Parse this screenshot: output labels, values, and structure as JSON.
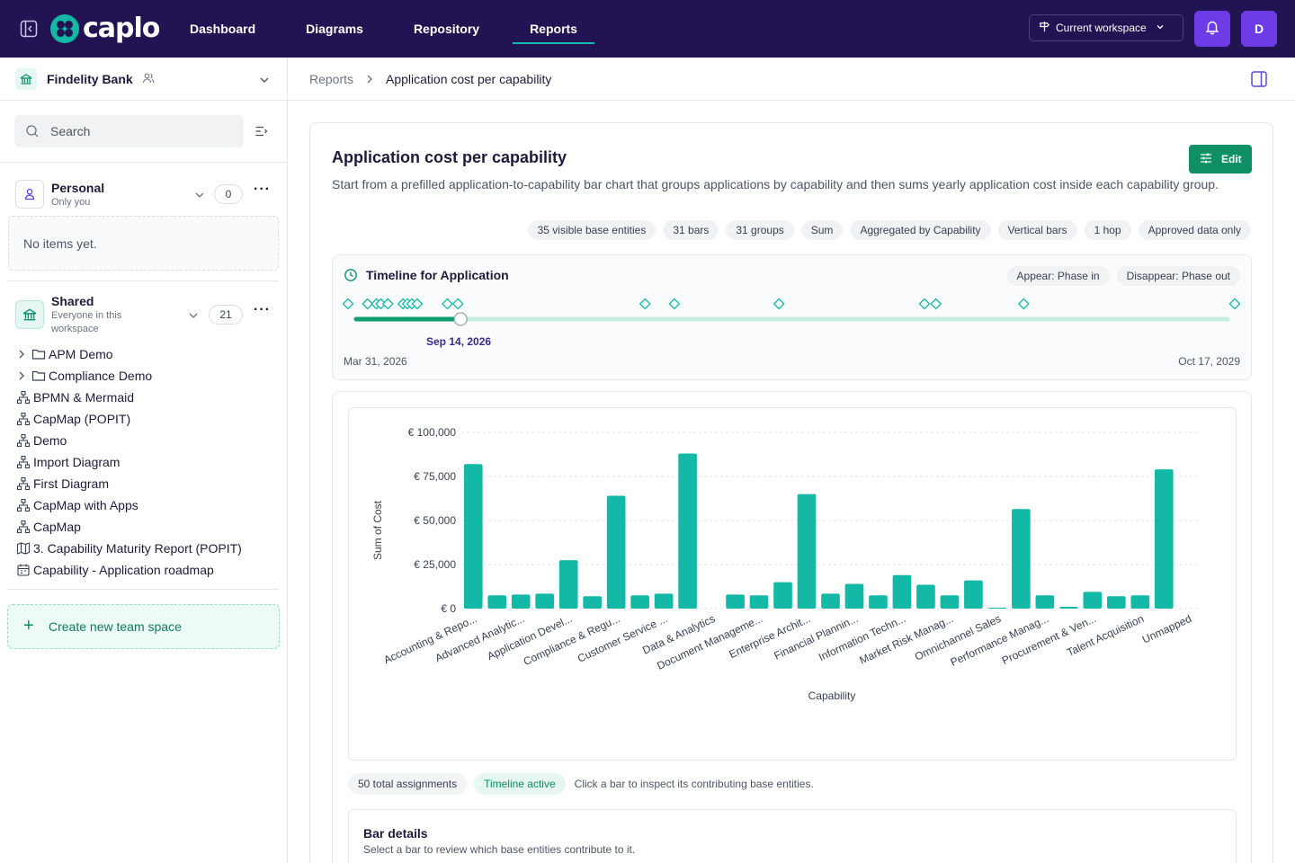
{
  "app": {
    "name": "caplo"
  },
  "nav": {
    "items": [
      {
        "label": "Dashboard",
        "active": false
      },
      {
        "label": "Diagrams",
        "active": false
      },
      {
        "label": "Repository",
        "active": false
      },
      {
        "label": "Reports",
        "active": true
      }
    ],
    "workspace_label": "Current workspace",
    "avatar_initial": "D"
  },
  "sidebar": {
    "org_name": "Findelity Bank",
    "search_placeholder": "Search",
    "personal": {
      "title": "Personal",
      "subtitle": "Only you",
      "count": "0",
      "empty_text": "No items yet."
    },
    "shared": {
      "title": "Shared",
      "subtitle": "Everyone in this workspace",
      "count": "21"
    },
    "tree": [
      {
        "label": "APM Demo",
        "icon": "folder-icon",
        "expandable": true
      },
      {
        "label": "Compliance Demo",
        "icon": "folder-icon",
        "expandable": true
      },
      {
        "label": "BPMN & Mermaid",
        "icon": "diagram-icon",
        "expandable": false
      },
      {
        "label": "CapMap (POPIT)",
        "icon": "diagram-icon",
        "expandable": false
      },
      {
        "label": "Demo",
        "icon": "diagram-icon",
        "expandable": false
      },
      {
        "label": "Import Diagram",
        "icon": "diagram-icon",
        "expandable": false
      },
      {
        "label": "First Diagram",
        "icon": "diagram-icon",
        "expandable": false
      },
      {
        "label": "CapMap with Apps",
        "icon": "diagram-icon",
        "expandable": false
      },
      {
        "label": "CapMap",
        "icon": "diagram-icon",
        "expandable": false
      },
      {
        "label": "3. Capability Maturity Report (POPIT)",
        "icon": "map-icon",
        "expandable": false
      },
      {
        "label": "Capability - Application roadmap",
        "icon": "calendar-icon",
        "expandable": false
      }
    ],
    "create_label": "Create new team space"
  },
  "breadcrumb": {
    "root": "Reports",
    "current": "Application cost per capability"
  },
  "report": {
    "title": "Application cost per capability",
    "edit_label": "Edit",
    "description": "Start from a prefilled application-to-capability bar chart that groups applications by capability and then sums yearly application cost inside each capability group.",
    "chips": [
      "35 visible base entities",
      "31 bars",
      "31 groups",
      "Sum",
      "Aggregated by Capability",
      "Vertical bars",
      "1 hop",
      "Approved data only"
    ]
  },
  "timeline": {
    "title": "Timeline for Application",
    "appear_label": "Appear: Phase in",
    "disappear_label": "Disappear: Phase out",
    "start_label": "Mar 31, 2026",
    "end_label": "Oct 17, 2029",
    "current_label": "Sep 14, 2026",
    "current_fraction": 0.127,
    "marker_fractions": [
      0,
      0.022,
      0.032,
      0.037,
      0.045,
      0.062,
      0.067,
      0.072,
      0.078,
      0.112,
      0.124,
      0.335,
      0.368,
      0.486,
      0.65,
      0.663,
      0.762,
      1.0
    ]
  },
  "colors": {
    "accent": "#14b8a6",
    "brand": "#221452",
    "edit": "#0f8f66",
    "purple": "#6d3ce6"
  },
  "chart_data": {
    "type": "bar",
    "xlabel": "Capability",
    "ylabel": "Sum of Cost",
    "ylim": [
      0,
      100000
    ],
    "yticks": [
      "€ 0",
      "€ 25,000",
      "€ 50,000",
      "€ 75,000",
      "€ 100,000"
    ],
    "ytick_values": [
      0,
      25000,
      50000,
      75000,
      100000
    ],
    "grid": true,
    "categories": [
      "Accounting & Repo...",
      "",
      "Advanced Analytic...",
      "",
      "Application Devel...",
      "",
      "Compliance & Regu...",
      "",
      "Customer Service ...",
      "",
      "Data & Analytics",
      "",
      "Document Manageme...",
      "",
      "Enterprise Archit...",
      "",
      "Financial Plannin...",
      "",
      "Information Techn...",
      "",
      "Market Risk Manag...",
      "",
      "Omnichannel Sales",
      "",
      "Performance Manag...",
      "",
      "Procurement & Ven...",
      "",
      "Talent Acquisition",
      "",
      "Unmapped"
    ],
    "values": [
      82000,
      7500,
      8000,
      8500,
      27500,
      7000,
      64000,
      7500,
      8500,
      88000,
      0,
      8000,
      7500,
      15000,
      65000,
      8500,
      14000,
      7500,
      19000,
      13500,
      7500,
      16000,
      500,
      56500,
      7500,
      1000,
      9500,
      7000,
      7500,
      79000,
      0
    ]
  },
  "summary": {
    "total_label": "50 total assignments",
    "timeline_label": "Timeline active",
    "hint": "Click a bar to inspect its contributing base entities."
  },
  "details": {
    "title": "Bar details",
    "subtitle": "Select a bar to review which base entities contribute to it."
  }
}
